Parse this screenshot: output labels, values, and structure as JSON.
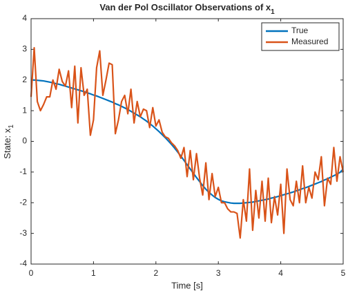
{
  "chart_data": {
    "type": "line",
    "title": "Van der Pol Oscillator Observations of x",
    "title_subscript": "1",
    "xlabel": "Time [s]",
    "ylabel": "State: x",
    "ylabel_subscript": "1",
    "x": [
      0,
      0.05,
      0.1,
      0.15,
      0.2,
      0.25,
      0.3,
      0.35,
      0.4,
      0.45,
      0.5,
      0.55,
      0.6,
      0.65,
      0.7,
      0.75,
      0.8,
      0.85,
      0.9,
      0.95,
      1,
      1.05,
      1.1,
      1.15,
      1.2,
      1.25,
      1.3,
      1.35,
      1.4,
      1.45,
      1.5,
      1.55,
      1.6,
      1.65,
      1.7,
      1.75,
      1.8,
      1.85,
      1.9,
      1.95,
      2,
      2.05,
      2.1,
      2.15,
      2.2,
      2.25,
      2.3,
      2.35,
      2.4,
      2.45,
      2.5,
      2.55,
      2.6,
      2.65,
      2.7,
      2.75,
      2.8,
      2.85,
      2.9,
      2.95,
      3,
      3.05,
      3.1,
      3.15,
      3.2,
      3.25,
      3.3,
      3.35,
      3.4,
      3.45,
      3.5,
      3.55,
      3.6,
      3.65,
      3.7,
      3.75,
      3.8,
      3.85,
      3.9,
      3.95,
      4,
      4.05,
      4.1,
      4.15,
      4.2,
      4.25,
      4.3,
      4.35,
      4.4,
      4.45,
      4.5,
      4.55,
      4.6,
      4.65,
      4.7,
      4.75,
      4.8,
      4.85,
      4.9,
      4.95,
      5
    ],
    "series": [
      {
        "name": "True",
        "color": "#0072BD",
        "values": [
          2.0,
          2.0,
          1.99,
          1.98,
          1.97,
          1.95,
          1.93,
          1.91,
          1.88,
          1.86,
          1.83,
          1.8,
          1.77,
          1.74,
          1.71,
          1.68,
          1.65,
          1.62,
          1.58,
          1.55,
          1.51,
          1.48,
          1.44,
          1.4,
          1.36,
          1.32,
          1.28,
          1.23,
          1.19,
          1.14,
          1.09,
          1.04,
          0.98,
          0.92,
          0.86,
          0.8,
          0.73,
          0.66,
          0.58,
          0.5,
          0.41,
          0.32,
          0.22,
          0.12,
          0.01,
          -0.1,
          -0.22,
          -0.35,
          -0.48,
          -0.62,
          -0.76,
          -0.9,
          -1.04,
          -1.18,
          -1.31,
          -1.44,
          -1.56,
          -1.66,
          -1.75,
          -1.83,
          -1.89,
          -1.94,
          -1.97,
          -1.99,
          -2.01,
          -2.02,
          -2.02,
          -2.02,
          -2.01,
          -2.0,
          -1.99,
          -1.98,
          -1.96,
          -1.94,
          -1.92,
          -1.9,
          -1.88,
          -1.85,
          -1.83,
          -1.8,
          -1.77,
          -1.74,
          -1.71,
          -1.68,
          -1.65,
          -1.61,
          -1.58,
          -1.54,
          -1.51,
          -1.47,
          -1.43,
          -1.39,
          -1.35,
          -1.31,
          -1.26,
          -1.22,
          -1.17,
          -1.12,
          -1.07,
          -1.01,
          -0.9
        ]
      },
      {
        "name": "Measured",
        "color": "#D95319",
        "values": [
          1.45,
          3.05,
          1.3,
          1.0,
          1.2,
          1.45,
          1.45,
          2.0,
          1.7,
          2.35,
          1.95,
          1.8,
          2.3,
          1.1,
          2.45,
          0.6,
          2.4,
          1.5,
          1.7,
          0.2,
          0.7,
          2.4,
          2.95,
          1.5,
          2.0,
          2.55,
          2.5,
          0.25,
          0.7,
          1.3,
          1.5,
          0.9,
          1.7,
          0.6,
          1.3,
          0.8,
          1.05,
          1.0,
          0.45,
          1.1,
          0.5,
          0.7,
          0.3,
          0.15,
          0.1,
          -0.05,
          -0.15,
          -0.3,
          -0.55,
          -0.2,
          -1.15,
          -0.3,
          -1.25,
          -0.4,
          -1.2,
          -1.75,
          -0.7,
          -1.9,
          -1.05,
          -1.8,
          -1.5,
          -2.0,
          -2.0,
          -2.2,
          -2.3,
          -2.3,
          -2.35,
          -3.15,
          -1.9,
          -2.6,
          -0.9,
          -2.9,
          -1.6,
          -2.5,
          -1.3,
          -2.6,
          -1.2,
          -2.65,
          -1.8,
          -2.4,
          -1.4,
          -3.0,
          -0.9,
          -1.9,
          -2.1,
          -1.3,
          -2.0,
          -0.8,
          -2.0,
          -1.5,
          -1.85,
          -1.0,
          -1.25,
          -0.5,
          -2.1,
          -1.2,
          -1.4,
          -0.2,
          -1.3,
          -0.5,
          -1.0
        ]
      }
    ],
    "xlim": [
      0,
      5
    ],
    "xticks": [
      0,
      1,
      2,
      3,
      4,
      5
    ],
    "ylim": [
      -4,
      4
    ],
    "yticks": [
      -4,
      -3,
      -2,
      -1,
      0,
      1,
      2,
      3,
      4
    ],
    "legend": "northeast"
  }
}
